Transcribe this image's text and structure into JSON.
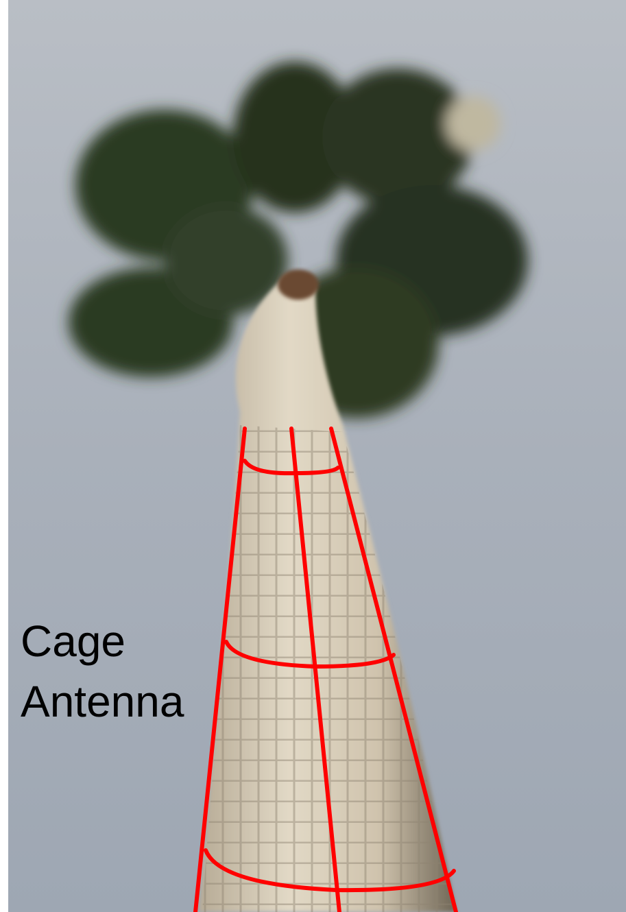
{
  "annotation": {
    "lines": [
      "Cage",
      "Antenna"
    ]
  }
}
